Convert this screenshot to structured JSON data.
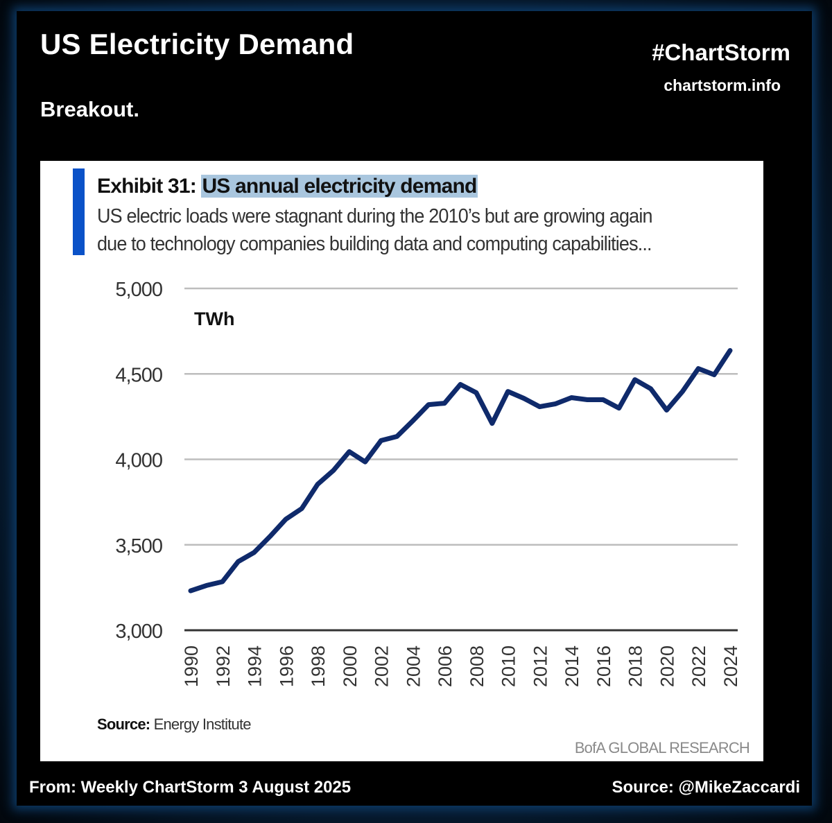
{
  "header": {
    "title": "US Electricity Demand",
    "subtitle": "Breakout.",
    "brand": "#ChartStorm",
    "brand_url": "chartstorm.info"
  },
  "footer": {
    "left": "From: Weekly ChartStorm 3 August 2025",
    "right": "Source: @MikeZaccardi"
  },
  "colors": {
    "line": "#0f2a6b",
    "accent_bar": "#0a52c8",
    "highlight": "#a9c6de",
    "gridline": "#bdbdbd",
    "axis": "#333333"
  },
  "card": {
    "exhibit_prefix": "Exhibit 31: ",
    "exhibit_title": "US annual electricity demand",
    "description_line1": "US electric loads were stagnant during the 2010’s but are growing again",
    "description_line2": "due to technology companies building data and computing capabilities...",
    "source_label": "Source:",
    "source_value": " Energy Institute",
    "publisher": "BofA GLOBAL RESEARCH"
  },
  "chart_data": {
    "type": "line",
    "title": "US annual electricity demand",
    "xlabel": "",
    "ylabel": "TWh",
    "unit_label": "TWh",
    "ylim": [
      3000,
      5000
    ],
    "yticks": [
      3000,
      3500,
      4000,
      4500,
      5000
    ],
    "ytick_labels": [
      "3,000",
      "3,500",
      "4,000",
      "4,500",
      "5,000"
    ],
    "xlim": [
      1990,
      2024
    ],
    "xticks": [
      1990,
      1992,
      1994,
      1996,
      1998,
      2000,
      2002,
      2004,
      2006,
      2008,
      2010,
      2012,
      2014,
      2016,
      2018,
      2020,
      2022,
      2024
    ],
    "grid": true,
    "legend": "none",
    "series": [
      {
        "name": "US annual electricity demand (TWh)",
        "x": [
          1990,
          1991,
          1992,
          1993,
          1994,
          1995,
          1996,
          1997,
          1998,
          1999,
          2000,
          2001,
          2002,
          2003,
          2004,
          2005,
          2006,
          2007,
          2008,
          2009,
          2010,
          2011,
          2012,
          2013,
          2014,
          2015,
          2016,
          2017,
          2018,
          2019,
          2020,
          2021,
          2022,
          2023,
          2024
        ],
        "values": [
          3231,
          3262,
          3284,
          3402,
          3455,
          3549,
          3650,
          3712,
          3854,
          3935,
          4045,
          3985,
          4110,
          4134,
          4225,
          4320,
          4328,
          4438,
          4390,
          4210,
          4397,
          4357,
          4308,
          4325,
          4361,
          4349,
          4349,
          4300,
          4466,
          4413,
          4288,
          4397,
          4531,
          4495,
          4637
        ]
      }
    ]
  }
}
